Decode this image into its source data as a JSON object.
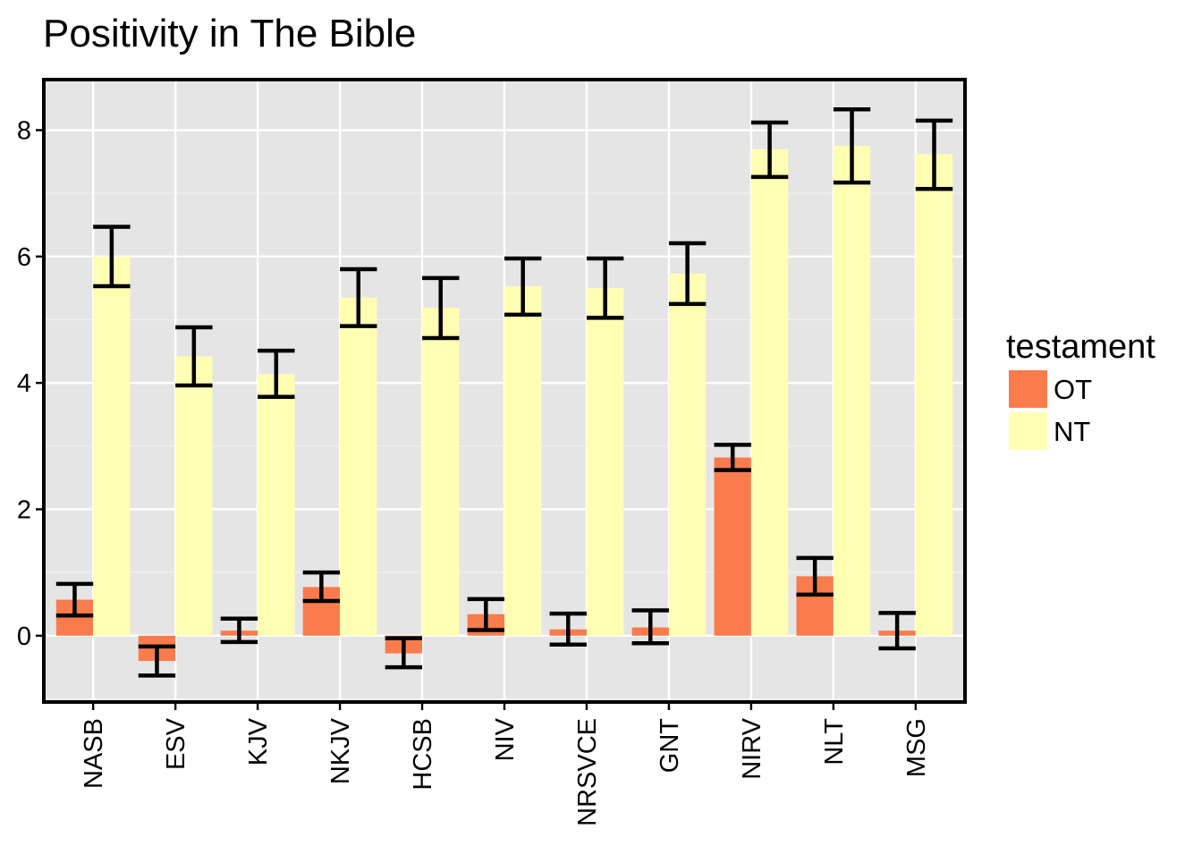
{
  "chart_data": {
    "type": "bar",
    "title": "Positivity in The Bible",
    "xlabel": "",
    "ylabel": "",
    "ylim": [
      -1.05,
      8.8
    ],
    "yticks": [
      "0",
      "2",
      "4",
      "6",
      "8"
    ],
    "grid": true,
    "legend_position": "right",
    "legend_title": "testament",
    "categories": [
      "NASB",
      "ESV",
      "KJV",
      "NKJV",
      "HCSB",
      "NIV",
      "NRSVCE",
      "GNT",
      "NIRV",
      "NLT",
      "MSG"
    ],
    "series": [
      {
        "name": "OT",
        "color": "#fa7c4c",
        "values": [
          0.57,
          -0.4,
          0.08,
          0.77,
          -0.28,
          0.34,
          0.1,
          0.13,
          2.82,
          0.94,
          0.08
        ],
        "error_low": [
          0.32,
          -0.63,
          -0.1,
          0.55,
          -0.5,
          0.09,
          -0.14,
          -0.12,
          2.62,
          0.65,
          -0.2
        ],
        "error_high": [
          0.82,
          -0.17,
          0.27,
          1.0,
          -0.04,
          0.58,
          0.35,
          0.4,
          3.02,
          1.23,
          0.36
        ]
      },
      {
        "name": "NT",
        "color": "#ffffb3",
        "values": [
          6.0,
          4.42,
          4.14,
          5.35,
          5.19,
          5.53,
          5.5,
          5.73,
          7.7,
          7.75,
          7.62
        ],
        "error_low": [
          5.53,
          3.96,
          3.78,
          4.9,
          4.71,
          5.08,
          5.03,
          5.25,
          7.26,
          7.17,
          7.07
        ],
        "error_high": [
          6.47,
          4.88,
          4.51,
          5.8,
          5.66,
          5.97,
          5.97,
          6.21,
          8.12,
          8.33,
          8.15
        ]
      }
    ]
  }
}
